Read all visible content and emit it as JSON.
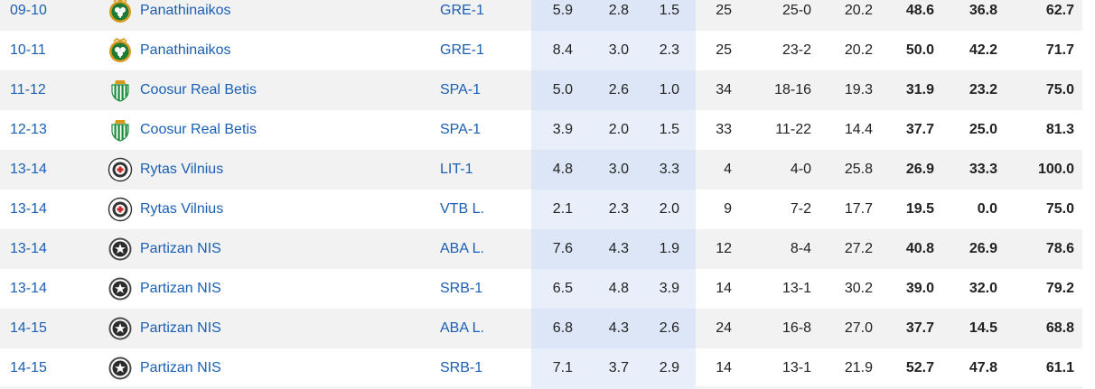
{
  "colors": {
    "link": "#1a5fb4",
    "row_alt": "#f2f2f2",
    "highlight_col": "#e8effa"
  },
  "rows": [
    {
      "season": "09-10",
      "team": "Panathinaikos",
      "logo": "panathinaikos-logo",
      "comp": "GRE-1",
      "v1": "5.9",
      "v2": "2.8",
      "v3": "1.5",
      "gp": "25",
      "record": "25-0",
      "v4": "20.2",
      "p1": "48.6",
      "p2": "36.8",
      "p3": "62.7"
    },
    {
      "season": "10-11",
      "team": "Panathinaikos",
      "logo": "panathinaikos-logo",
      "comp": "GRE-1",
      "v1": "8.4",
      "v2": "3.0",
      "v3": "2.3",
      "gp": "25",
      "record": "23-2",
      "v4": "20.2",
      "p1": "50.0",
      "p2": "42.2",
      "p3": "71.7"
    },
    {
      "season": "11-12",
      "team": "Coosur Real Betis",
      "logo": "real-betis-logo",
      "comp": "SPA-1",
      "v1": "5.0",
      "v2": "2.6",
      "v3": "1.0",
      "gp": "34",
      "record": "18-16",
      "v4": "19.3",
      "p1": "31.9",
      "p2": "23.2",
      "p3": "75.0"
    },
    {
      "season": "12-13",
      "team": "Coosur Real Betis",
      "logo": "real-betis-logo",
      "comp": "SPA-1",
      "v1": "3.9",
      "v2": "2.0",
      "v3": "1.5",
      "gp": "33",
      "record": "11-22",
      "v4": "14.4",
      "p1": "37.7",
      "p2": "25.0",
      "p3": "81.3"
    },
    {
      "season": "13-14",
      "team": "Rytas Vilnius",
      "logo": "rytas-logo",
      "comp": "LIT-1",
      "v1": "4.8",
      "v2": "3.0",
      "v3": "3.3",
      "gp": "4",
      "record": "4-0",
      "v4": "25.8",
      "p1": "26.9",
      "p2": "33.3",
      "p3": "100.0"
    },
    {
      "season": "13-14",
      "team": "Rytas Vilnius",
      "logo": "rytas-logo",
      "comp": "VTB L.",
      "v1": "2.1",
      "v2": "2.3",
      "v3": "2.0",
      "gp": "9",
      "record": "7-2",
      "v4": "17.7",
      "p1": "19.5",
      "p2": "0.0",
      "p3": "75.0"
    },
    {
      "season": "13-14",
      "team": "Partizan NIS",
      "logo": "partizan-logo",
      "comp": "ABA L.",
      "v1": "7.6",
      "v2": "4.3",
      "v3": "1.9",
      "gp": "12",
      "record": "8-4",
      "v4": "27.2",
      "p1": "40.8",
      "p2": "26.9",
      "p3": "78.6"
    },
    {
      "season": "13-14",
      "team": "Partizan NIS",
      "logo": "partizan-logo",
      "comp": "SRB-1",
      "v1": "6.5",
      "v2": "4.8",
      "v3": "3.9",
      "gp": "14",
      "record": "13-1",
      "v4": "30.2",
      "p1": "39.0",
      "p2": "32.0",
      "p3": "79.2"
    },
    {
      "season": "14-15",
      "team": "Partizan NIS",
      "logo": "partizan-logo",
      "comp": "ABA L.",
      "v1": "6.8",
      "v2": "4.3",
      "v3": "2.6",
      "gp": "24",
      "record": "16-8",
      "v4": "27.0",
      "p1": "37.7",
      "p2": "14.5",
      "p3": "68.8"
    },
    {
      "season": "14-15",
      "team": "Partizan NIS",
      "logo": "partizan-logo",
      "comp": "SRB-1",
      "v1": "7.1",
      "v2": "3.7",
      "v3": "2.9",
      "gp": "14",
      "record": "13-1",
      "v4": "21.9",
      "p1": "52.7",
      "p2": "47.8",
      "p3": "61.1"
    }
  ]
}
